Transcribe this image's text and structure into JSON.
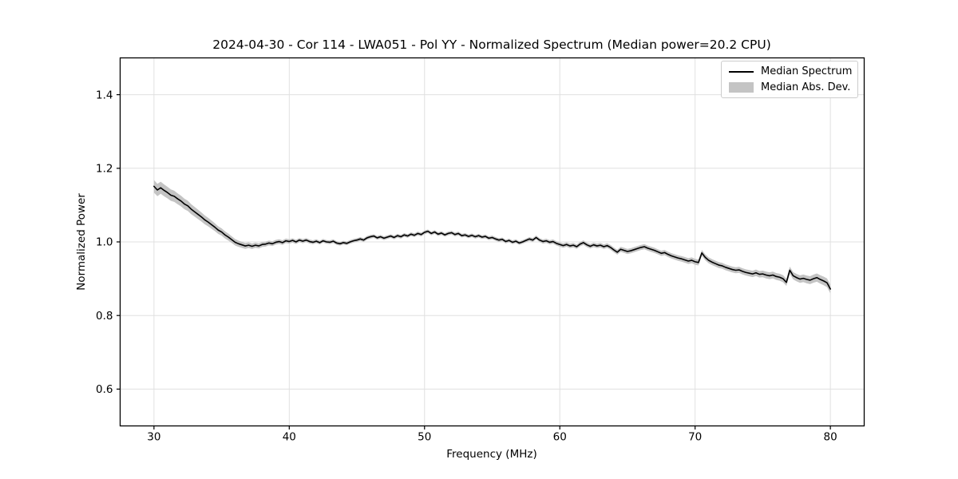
{
  "chart_data": {
    "type": "line",
    "title": "2024-04-30 - Cor 114 - LWA051 - Pol YY - Normalized Spectrum (Median power=20.2 CPU)",
    "xlabel": "Frequency (MHz)",
    "ylabel": "Normalized Power",
    "xlim": [
      27.5,
      82.5
    ],
    "ylim": [
      0.5,
      1.5
    ],
    "xticks": [
      30,
      40,
      50,
      60,
      70,
      80
    ],
    "yticks": [
      0.6,
      0.8,
      1.0,
      1.2,
      1.4
    ],
    "grid": true,
    "legend_position": "upper right",
    "colors": {
      "line": "#000000",
      "band": "#c4c4c4",
      "grid": "#e0e0e0",
      "spine": "#000000",
      "legend_border": "#cccccc",
      "background": "#ffffff"
    },
    "series": [
      {
        "name": "Median Spectrum",
        "kind": "line",
        "x_start": 30.0,
        "x_step": 0.25,
        "y": [
          1.151,
          1.141,
          1.147,
          1.14,
          1.134,
          1.127,
          1.124,
          1.117,
          1.111,
          1.103,
          1.098,
          1.089,
          1.082,
          1.075,
          1.068,
          1.06,
          1.054,
          1.047,
          1.04,
          1.032,
          1.027,
          1.019,
          1.013,
          1.006,
          0.999,
          0.995,
          0.992,
          0.989,
          0.991,
          0.988,
          0.991,
          0.989,
          0.993,
          0.994,
          0.997,
          0.995,
          0.999,
          1.001,
          0.998,
          1.003,
          1.001,
          1.004,
          1.0,
          1.005,
          1.002,
          1.005,
          1.001,
          0.999,
          1.002,
          0.998,
          1.003,
          1.0,
          0.999,
          1.002,
          0.997,
          0.995,
          0.998,
          0.996,
          1.0,
          1.003,
          1.005,
          1.008,
          1.005,
          1.011,
          1.014,
          1.016,
          1.011,
          1.014,
          1.01,
          1.013,
          1.016,
          1.012,
          1.017,
          1.014,
          1.019,
          1.016,
          1.021,
          1.018,
          1.023,
          1.02,
          1.026,
          1.029,
          1.023,
          1.027,
          1.021,
          1.024,
          1.019,
          1.023,
          1.025,
          1.02,
          1.023,
          1.017,
          1.019,
          1.015,
          1.018,
          1.014,
          1.017,
          1.013,
          1.015,
          1.01,
          1.012,
          1.008,
          1.005,
          1.007,
          1.001,
          1.004,
          0.999,
          1.002,
          0.997,
          1.0,
          1.004,
          1.008,
          1.005,
          1.012,
          1.005,
          1.001,
          1.003,
          0.999,
          1.001,
          0.996,
          0.993,
          0.99,
          0.993,
          0.989,
          0.991,
          0.987,
          0.994,
          0.998,
          0.992,
          0.988,
          0.992,
          0.989,
          0.991,
          0.987,
          0.99,
          0.985,
          0.978,
          0.972,
          0.98,
          0.977,
          0.974,
          0.976,
          0.979,
          0.982,
          0.985,
          0.987,
          0.983,
          0.98,
          0.977,
          0.973,
          0.969,
          0.971,
          0.966,
          0.962,
          0.959,
          0.956,
          0.954,
          0.951,
          0.948,
          0.95,
          0.946,
          0.944,
          0.97,
          0.958,
          0.95,
          0.945,
          0.941,
          0.937,
          0.935,
          0.931,
          0.928,
          0.925,
          0.923,
          0.924,
          0.92,
          0.917,
          0.915,
          0.913,
          0.916,
          0.912,
          0.913,
          0.91,
          0.908,
          0.91,
          0.906,
          0.904,
          0.9,
          0.89,
          0.923,
          0.908,
          0.903,
          0.899,
          0.901,
          0.898,
          0.896,
          0.9,
          0.903,
          0.898,
          0.894,
          0.889,
          0.872
        ]
      },
      {
        "name": "Median Abs. Dev.",
        "kind": "band",
        "x_start": 30.0,
        "x_step": 2.5,
        "half_width": [
          0.017,
          0.014,
          0.01,
          0.007,
          0.006,
          0.005,
          0.005,
          0.005,
          0.005,
          0.005,
          0.005,
          0.005,
          0.006,
          0.006,
          0.007,
          0.007,
          0.008,
          0.008,
          0.009,
          0.01,
          0.012
        ]
      }
    ]
  }
}
